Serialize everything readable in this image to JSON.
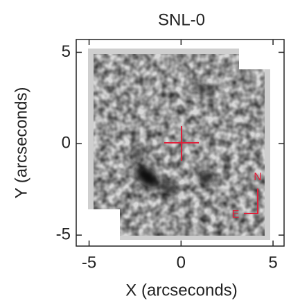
{
  "chart_data": {
    "type": "image",
    "title": "SNL-0",
    "x_label": "X (arcseconds)",
    "y_label": "Y (arcseconds)",
    "xlim": [
      -5.7,
      5.6
    ],
    "ylim": [
      -5.6,
      5.7
    ],
    "xticks": [
      -5,
      0,
      5
    ],
    "yticks": [
      -5,
      0,
      5
    ],
    "annotations": [
      "N",
      "E"
    ],
    "annotation_color": "#e0203a"
  }
}
